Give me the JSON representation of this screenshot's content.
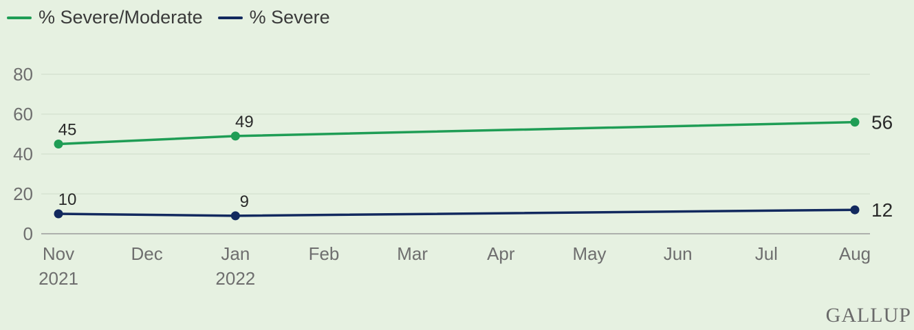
{
  "chart_data": {
    "type": "line",
    "categories": [
      "Nov|2021",
      "Dec",
      "Jan|2022",
      "Feb",
      "Mar",
      "Apr",
      "May",
      "Jun",
      "Jul",
      "Aug"
    ],
    "ylim": [
      0,
      80
    ],
    "yticks": [
      0,
      20,
      40,
      60,
      80
    ],
    "grid": true,
    "legend_position": "top-left",
    "series": [
      {
        "name": "% Severe/Moderate",
        "color": "#1f9d55",
        "points": [
          {
            "x": "Nov|2021",
            "y": 45,
            "label": "45"
          },
          {
            "x": "Jan|2022",
            "y": 49,
            "label": "49"
          },
          {
            "x": "Aug",
            "y": 56,
            "label": "56"
          }
        ]
      },
      {
        "name": "% Severe",
        "color": "#12295e",
        "points": [
          {
            "x": "Nov|2021",
            "y": 10,
            "label": "10"
          },
          {
            "x": "Jan|2022",
            "y": 9,
            "label": "9"
          },
          {
            "x": "Aug",
            "y": 12,
            "label": "12"
          }
        ]
      }
    ]
  },
  "brand": "GALLUP"
}
